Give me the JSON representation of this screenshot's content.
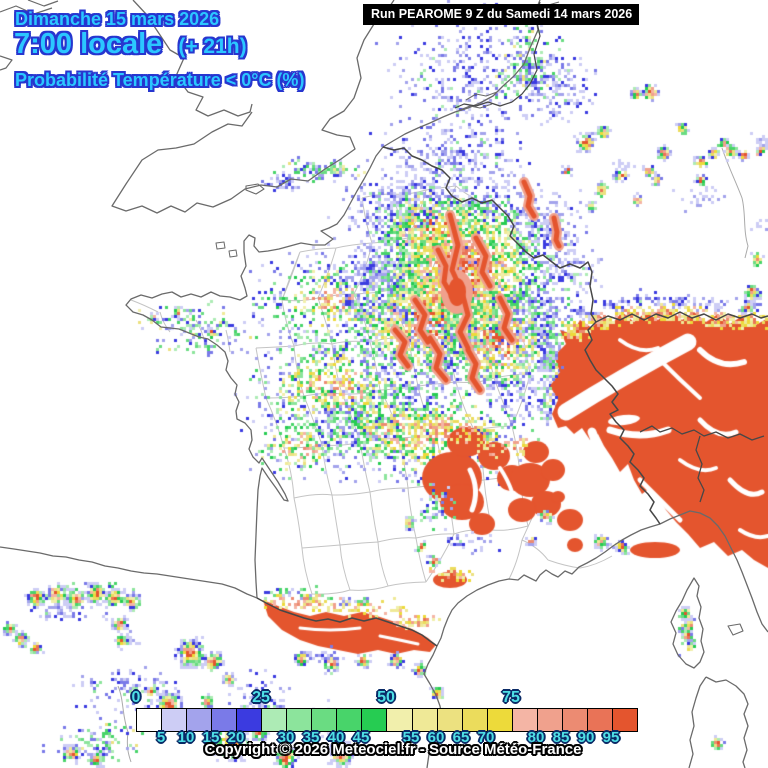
{
  "header": {
    "date": "Dimanche 15 mars 2026",
    "time": "7:00 locale",
    "offset": "(+ 21h)",
    "subtitle": "Probabilité Température < 0°C (%)"
  },
  "run_info": {
    "label": "Run PEAROME 9 Z du Samedi 14 mars 2026"
  },
  "footer": {
    "copyright": "Copyright © 2026 Meteociel.fr - Source Météo-France"
  },
  "legend": {
    "unit": "%",
    "major_labels": [
      "0",
      "25",
      "50",
      "75"
    ],
    "minor_labels": [
      "5",
      "10",
      "15",
      "20",
      "30",
      "35",
      "40",
      "45",
      "55",
      "60",
      "65",
      "70",
      "80",
      "85",
      "90",
      "95"
    ],
    "colors": [
      "#FFFFFF",
      "#CDCDF5",
      "#A3A3EC",
      "#7A7AE8",
      "#3B3BE0",
      "#ADEBB5",
      "#8CE49C",
      "#6ADC82",
      "#48D46A",
      "#26CC52",
      "#F1EFAC",
      "#EFE997",
      "#ECE180",
      "#EBDC5C",
      "#EDDA3A",
      "#F4B5A5",
      "#F0A18D",
      "#EC8B72",
      "#E97357",
      "#E4552E"
    ],
    "label_color": "#4FE0E6",
    "bar_border_color": "#000000"
  },
  "style_colors": {
    "title_text": "#2BC7FF",
    "title_outline": "#2736CF",
    "run_box_bg": "#000000",
    "run_box_text": "#FFFFFF",
    "coastline": "#6A6A6A",
    "country_border": "#474747",
    "department_line": "#C4C4C4",
    "sea_land": "#FFFFFF"
  }
}
